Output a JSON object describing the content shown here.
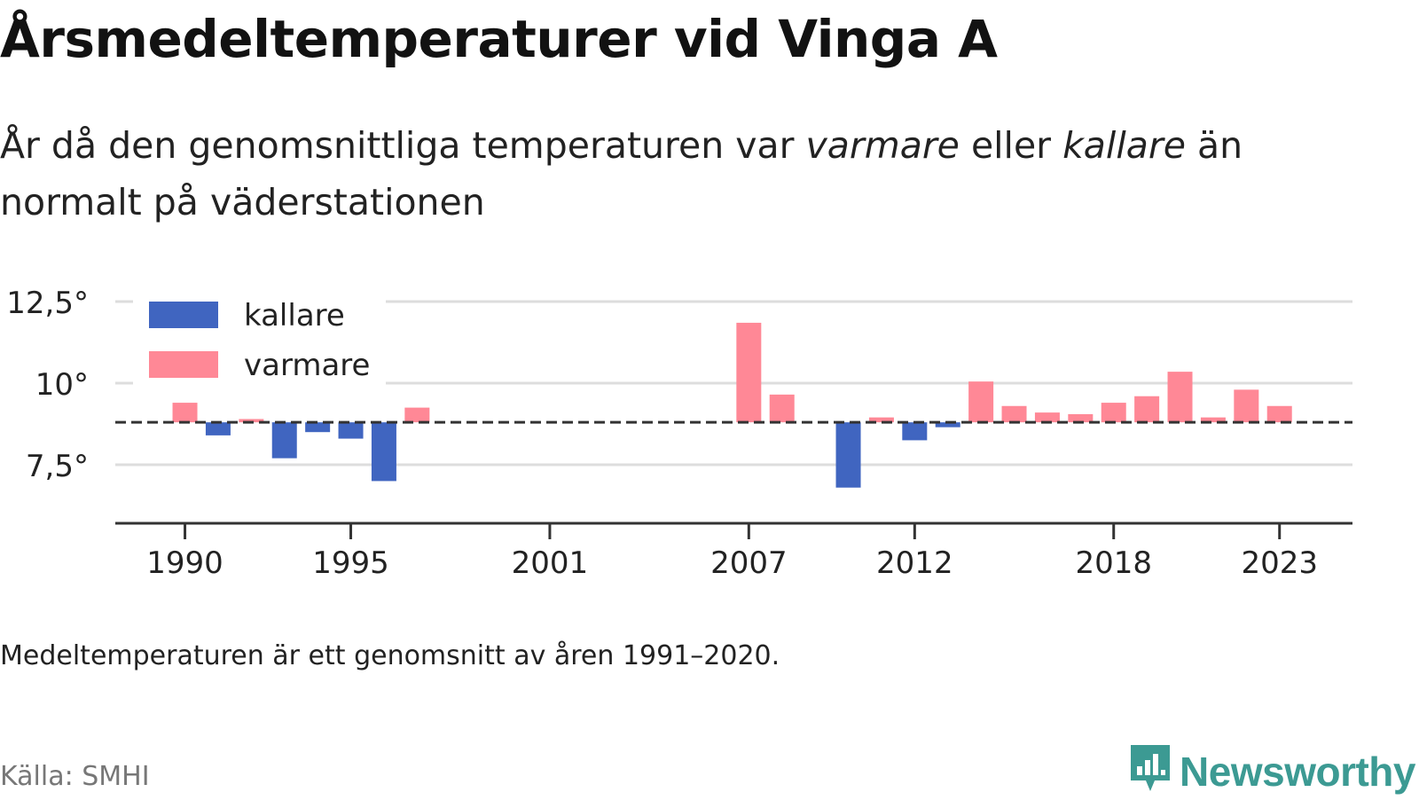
{
  "title": "Årsmedeltemperaturer vid Vinga A",
  "subtitle": {
    "part1": "År då den genomsnittliga temperaturen var ",
    "warm_word": "varmare",
    "part2": " eller ",
    "cold_word": "kallare",
    "part3": " än normalt på väderstationen"
  },
  "note": "Medeltemperaturen är ett genomsnitt av åren 1991–2020.",
  "source": "Källa: SMHI",
  "brand": {
    "name": "Newsworthy",
    "logo_icon": "newsworthy-logo-icon"
  },
  "colors": {
    "colder": "#4065c0",
    "warmer": "#ff8896",
    "grid": "#dddddd",
    "axis": "#333333",
    "baseline": "#333333",
    "brand": "#3c9a93"
  },
  "chart_data": {
    "type": "bar",
    "baseline": 8.8,
    "ylim": [
      5.7,
      13.3
    ],
    "xlim": [
      1987.9,
      2025.2
    ],
    "yticks": [
      {
        "value": 7.5,
        "label": "7,5°"
      },
      {
        "value": 10,
        "label": "10°"
      },
      {
        "value": 12.5,
        "label": "12,5°"
      }
    ],
    "xticks": [
      {
        "value": 1990,
        "label": "1990"
      },
      {
        "value": 1995,
        "label": "1995"
      },
      {
        "value": 2001,
        "label": "2001"
      },
      {
        "value": 2007,
        "label": "2007"
      },
      {
        "value": 2012,
        "label": "2012"
      },
      {
        "value": 2018,
        "label": "2018"
      },
      {
        "value": 2023,
        "label": "2023"
      }
    ],
    "legend": [
      {
        "key": "colder",
        "label": "kallare"
      },
      {
        "key": "warmer",
        "label": "varmare"
      }
    ],
    "legend_position": "top-left",
    "years": [
      1990,
      1991,
      1992,
      1993,
      1994,
      1995,
      1996,
      1997,
      2007,
      2008,
      2010,
      2011,
      2012,
      2013,
      2014,
      2015,
      2016,
      2017,
      2018,
      2019,
      2020,
      2021,
      2022,
      2023
    ],
    "values": [
      9.4,
      8.4,
      8.9,
      7.7,
      8.5,
      8.3,
      7.0,
      9.25,
      11.85,
      9.65,
      6.8,
      8.95,
      8.25,
      8.65,
      10.05,
      9.3,
      9.1,
      9.05,
      9.4,
      9.6,
      10.35,
      8.95,
      9.8,
      9.3
    ]
  }
}
